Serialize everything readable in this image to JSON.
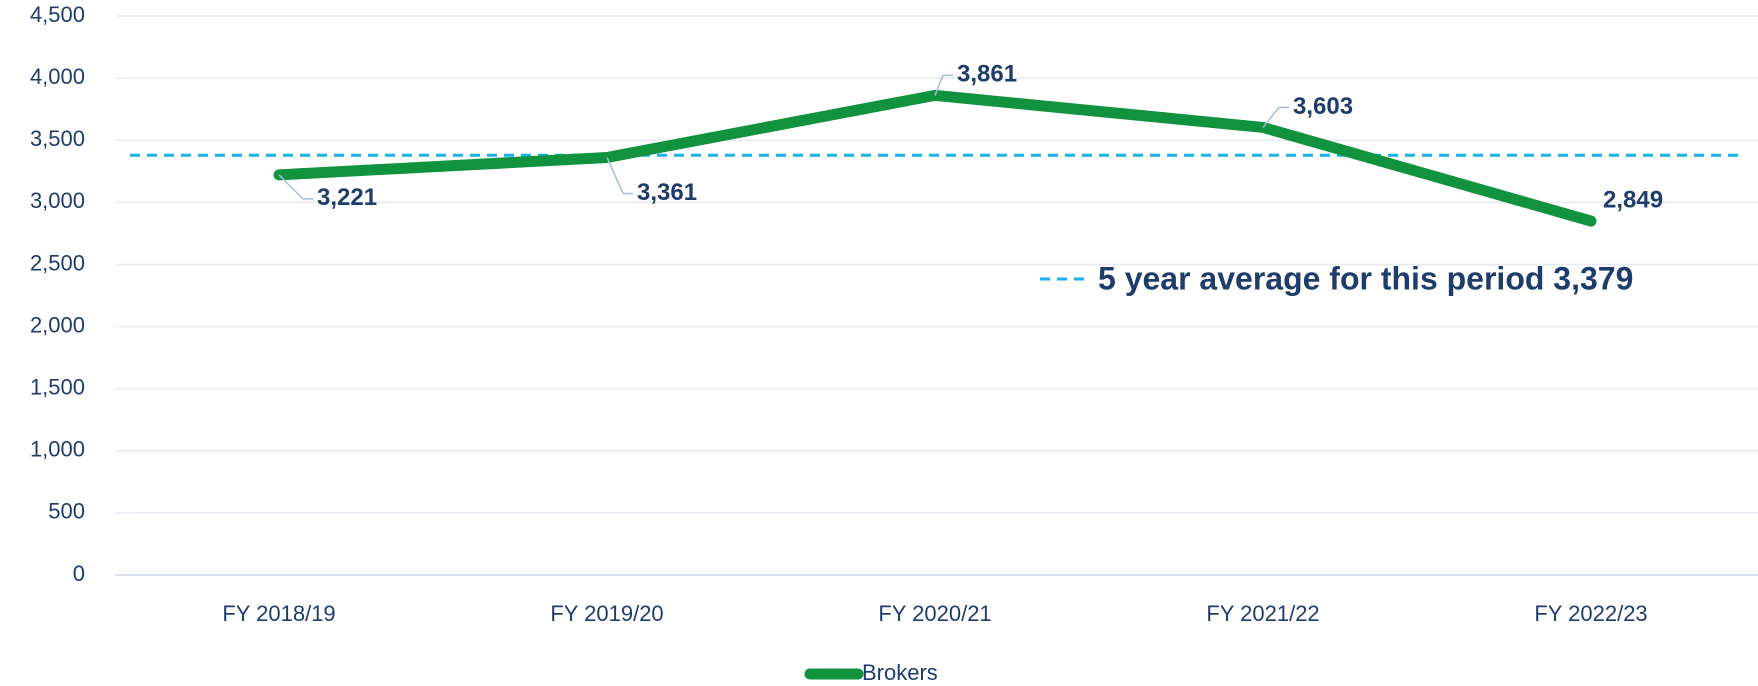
{
  "chart_data": {
    "type": "line",
    "categories": [
      "FY 2018/19",
      "FY 2019/20",
      "FY 2020/21",
      "FY 2021/22",
      "FY 2022/23"
    ],
    "series": [
      {
        "name": "Brokers",
        "color": "#10923e",
        "values": [
          3221,
          3361,
          3861,
          3603,
          2849
        ],
        "value_labels": [
          "3,221",
          "3,361",
          "3,861",
          "3,603",
          "2,849"
        ],
        "value_label_colors": [
          "#1f4e79",
          "#1a7a36",
          "#1a7a36",
          "#ee1111",
          "#ee1111"
        ]
      }
    ],
    "average": {
      "value": 3379,
      "label": "5 year average for this period 3,379",
      "color": "#1ab0e8"
    },
    "ylim": [
      0,
      4500
    ],
    "yticks": [
      0,
      500,
      {
        "value": 1000,
        "label": "1,000"
      },
      {
        "value": 1500,
        "label": "1,500"
      },
      {
        "value": 2000,
        "label": "2,000"
      },
      {
        "value": 2500,
        "label": "2,500"
      },
      {
        "value": 3000,
        "label": "3,000"
      },
      {
        "value": 3500,
        "label": "3,500"
      },
      {
        "value": 4000,
        "label": "4,000"
      },
      {
        "value": 4500,
        "label": "4,500"
      }
    ],
    "grid": true,
    "legend": "bottom"
  }
}
